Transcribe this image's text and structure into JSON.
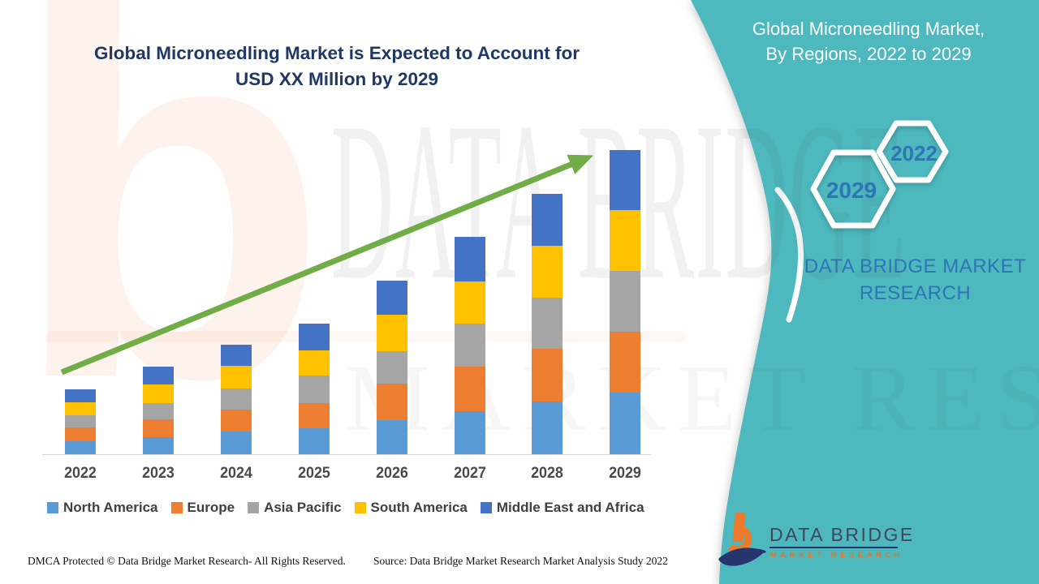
{
  "title": {
    "line1": "Global Microneedling Market is Expected to Account for",
    "line2": "USD XX Million by 2029",
    "color": "#1F3864"
  },
  "teal_panel": {
    "background": "#4DB9BE",
    "heading_line1": "Global Microneedling Market,",
    "heading_line2": "By Regions, 2022 to 2029",
    "hexagon_back_year": "2022",
    "hexagon_front_year": "2029",
    "brand_text": "DATA BRIDGE MARKET RESEARCH",
    "text_color": "#2E75B6"
  },
  "chart_data": {
    "type": "bar",
    "stacked": true,
    "categories": [
      "2022",
      "2023",
      "2024",
      "2025",
      "2026",
      "2027",
      "2028",
      "2029"
    ],
    "series": [
      {
        "name": "North America",
        "color": "#5B9BD5",
        "values": [
          16,
          21,
          28,
          32,
          42,
          53,
          65,
          76
        ]
      },
      {
        "name": "Europe",
        "color": "#ED7D31",
        "values": [
          17,
          22,
          27,
          31,
          45,
          55,
          65,
          75
        ]
      },
      {
        "name": "Asia Pacific",
        "color": "#A5A5A5",
        "values": [
          15,
          20,
          26,
          34,
          40,
          53,
          63,
          75
        ]
      },
      {
        "name": "South America",
        "color": "#FFC000",
        "values": [
          16,
          23,
          28,
          31,
          45,
          52,
          64,
          75
        ]
      },
      {
        "name": "Middle East and Africa",
        "color": "#4472C4",
        "values": [
          16,
          22,
          26,
          33,
          42,
          55,
          64,
          74
        ]
      }
    ],
    "stack_totals": [
      80,
      108,
      135,
      161,
      214,
      268,
      321,
      375
    ],
    "value_unit": "relative units; value axis not labeled (market in USD XX Million)",
    "xlabel": "",
    "ylabel": "",
    "grid": false,
    "legend_position": "bottom",
    "trend_arrow_color": "#70AD47"
  },
  "watermark": {
    "row1": "DATA BRIDGE",
    "row2": "MARKET RESEARCH"
  },
  "footer": {
    "dmca": "DMCA Protected © Data Bridge Market Research- All Rights Reserved.",
    "source": "Source: Data Bridge Market Research Market Analysis Study 2022"
  },
  "logo": {
    "name": "DATA BRIDGE",
    "subtitle": "MARKET RESEARCH",
    "orange": "#EE7B2C",
    "navy": "#27356F"
  }
}
